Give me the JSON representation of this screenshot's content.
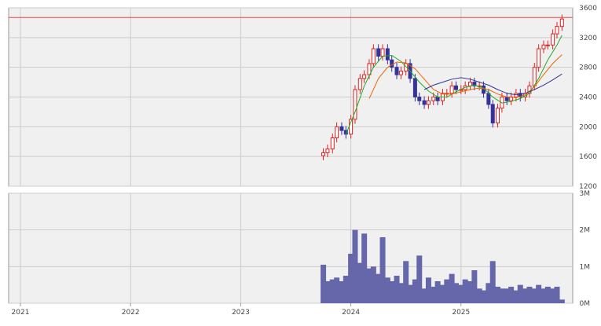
{
  "colors": {
    "panel_bg": "#f0f0f0",
    "grid": "#cccccc",
    "frame": "#999999",
    "up_candle": "#dd2222",
    "down_candle": "#333399",
    "ma_short": "#22aa22",
    "ma_mid": "#ee6600",
    "ma_long": "#333399",
    "volume": "#6666aa",
    "reference_line": "#ee4444"
  },
  "chart_data": [
    {
      "type": "candlestick",
      "title": "",
      "xlabel": "",
      "ylabel": "",
      "x_ticks": [
        "2021",
        "2022",
        "2023",
        "2024",
        "2025"
      ],
      "y_ticks": [
        "1200",
        "1600",
        "2000",
        "2400",
        "2800",
        "3200",
        "3600"
      ],
      "ylim": [
        1200,
        3600
      ],
      "grid": true,
      "reference_line": 3470,
      "x_range": [
        "2021-01",
        "2025-12"
      ],
      "series": [
        {
          "kind": "price_close",
          "x": [
            "2023-10-01",
            "2023-10-15",
            "2023-11-01",
            "2023-11-15",
            "2023-12-01",
            "2023-12-15",
            "2024-01-01",
            "2024-01-15",
            "2024-02-01",
            "2024-02-15",
            "2024-03-01",
            "2024-03-15",
            "2024-04-01",
            "2024-04-15",
            "2024-05-01",
            "2024-05-15",
            "2024-06-01",
            "2024-06-15",
            "2024-07-01",
            "2024-07-15",
            "2024-08-01",
            "2024-08-15",
            "2024-09-01",
            "2024-09-15",
            "2024-10-01",
            "2024-10-15",
            "2024-11-01",
            "2024-11-15",
            "2024-12-01",
            "2024-12-15",
            "2025-01-01",
            "2025-01-15",
            "2025-02-01",
            "2025-02-15",
            "2025-03-01",
            "2025-03-15",
            "2025-04-01",
            "2025-04-15",
            "2025-05-01",
            "2025-05-15",
            "2025-06-01",
            "2025-06-15",
            "2025-07-01",
            "2025-07-15",
            "2025-08-01",
            "2025-08-15",
            "2025-09-01",
            "2025-09-15",
            "2025-10-01",
            "2025-10-15",
            "2025-11-01",
            "2025-11-15",
            "2025-12-01"
          ],
          "values": [
            1650,
            1700,
            1850,
            2000,
            1950,
            1900,
            2100,
            2500,
            2650,
            2700,
            2850,
            3050,
            2950,
            3050,
            2900,
            2800,
            2700,
            2750,
            2850,
            2650,
            2400,
            2350,
            2300,
            2350,
            2400,
            2350,
            2450,
            2450,
            2550,
            2500,
            2500,
            2550,
            2600,
            2550,
            2550,
            2450,
            2300,
            2050,
            2250,
            2400,
            2350,
            2400,
            2450,
            2400,
            2450,
            2550,
            2800,
            3050,
            3100,
            3100,
            3250,
            3350,
            3450
          ]
        },
        {
          "kind": "ma_short",
          "x": [
            "2023-12-15",
            "2024-01-15",
            "2024-02-15",
            "2024-03-15",
            "2024-04-15",
            "2024-05-15",
            "2024-06-15",
            "2024-07-15",
            "2024-08-15",
            "2024-09-15",
            "2024-10-15",
            "2024-11-15",
            "2024-12-15",
            "2025-01-15",
            "2025-02-15",
            "2025-03-15",
            "2025-04-15",
            "2025-05-15",
            "2025-06-15",
            "2025-07-15",
            "2025-08-15",
            "2025-09-15",
            "2025-10-15",
            "2025-11-15",
            "2025-12-01"
          ],
          "values": [
            1900,
            2200,
            2550,
            2800,
            2950,
            2960,
            2880,
            2750,
            2600,
            2480,
            2400,
            2400,
            2470,
            2530,
            2560,
            2520,
            2400,
            2320,
            2340,
            2380,
            2450,
            2650,
            2900,
            3100,
            3230
          ]
        },
        {
          "kind": "ma_mid",
          "x": [
            "2024-03-01",
            "2024-04-01",
            "2024-05-01",
            "2024-06-01",
            "2024-07-01",
            "2024-08-01",
            "2024-09-01",
            "2024-10-01",
            "2024-11-01",
            "2024-12-01",
            "2025-01-01",
            "2025-02-01",
            "2025-03-01",
            "2025-04-01",
            "2025-05-01",
            "2025-06-01",
            "2025-07-01",
            "2025-08-01",
            "2025-09-01",
            "2025-10-01",
            "2025-11-01",
            "2025-12-01"
          ],
          "values": [
            2380,
            2650,
            2800,
            2870,
            2860,
            2780,
            2640,
            2500,
            2440,
            2440,
            2470,
            2500,
            2520,
            2500,
            2440,
            2400,
            2390,
            2430,
            2540,
            2700,
            2850,
            2970
          ]
        },
        {
          "kind": "ma_long",
          "x": [
            "2024-09-01",
            "2024-10-01",
            "2024-11-01",
            "2024-12-01",
            "2025-01-01",
            "2025-02-01",
            "2025-03-01",
            "2025-04-01",
            "2025-05-01",
            "2025-06-01",
            "2025-07-01",
            "2025-08-01",
            "2025-09-01",
            "2025-10-01",
            "2025-11-01",
            "2025-12-01"
          ],
          "values": [
            2500,
            2560,
            2600,
            2640,
            2660,
            2640,
            2600,
            2560,
            2500,
            2450,
            2430,
            2450,
            2500,
            2560,
            2630,
            2710
          ]
        }
      ]
    },
    {
      "type": "bar",
      "title": "",
      "xlabel": "",
      "ylabel": "",
      "y_ticks": [
        "0M",
        "1M",
        "2M",
        "3M"
      ],
      "ylim": [
        0,
        3000000
      ],
      "grid": true,
      "x": [
        "2023-10-01",
        "2023-10-15",
        "2023-11-01",
        "2023-11-15",
        "2023-12-01",
        "2023-12-15",
        "2024-01-01",
        "2024-01-15",
        "2024-02-01",
        "2024-02-15",
        "2024-03-01",
        "2024-03-15",
        "2024-04-01",
        "2024-04-15",
        "2024-05-01",
        "2024-05-15",
        "2024-06-01",
        "2024-06-15",
        "2024-07-01",
        "2024-07-15",
        "2024-08-01",
        "2024-08-15",
        "2024-09-01",
        "2024-09-15",
        "2024-10-01",
        "2024-10-15",
        "2024-11-01",
        "2024-11-15",
        "2024-12-01",
        "2024-12-15",
        "2025-01-01",
        "2025-01-15",
        "2025-02-01",
        "2025-02-15",
        "2025-03-01",
        "2025-03-15",
        "2025-04-01",
        "2025-04-15",
        "2025-05-01",
        "2025-05-15",
        "2025-06-01",
        "2025-06-15",
        "2025-07-01",
        "2025-07-15",
        "2025-08-01",
        "2025-08-15",
        "2025-09-01",
        "2025-09-15",
        "2025-10-01",
        "2025-10-15",
        "2025-11-01",
        "2025-11-15",
        "2025-12-01"
      ],
      "values": [
        1050000,
        600000,
        650000,
        700000,
        600000,
        750000,
        1350000,
        2000000,
        1100000,
        1900000,
        950000,
        1000000,
        800000,
        1800000,
        700000,
        600000,
        750000,
        550000,
        1150000,
        500000,
        650000,
        1300000,
        400000,
        700000,
        450000,
        600000,
        500000,
        650000,
        800000,
        550000,
        500000,
        650000,
        600000,
        900000,
        400000,
        350000,
        550000,
        1150000,
        450000,
        400000,
        400000,
        450000,
        350000,
        500000,
        400000,
        450000,
        400000,
        500000,
        400000,
        450000,
        400000,
        450000,
        100000
      ]
    }
  ]
}
